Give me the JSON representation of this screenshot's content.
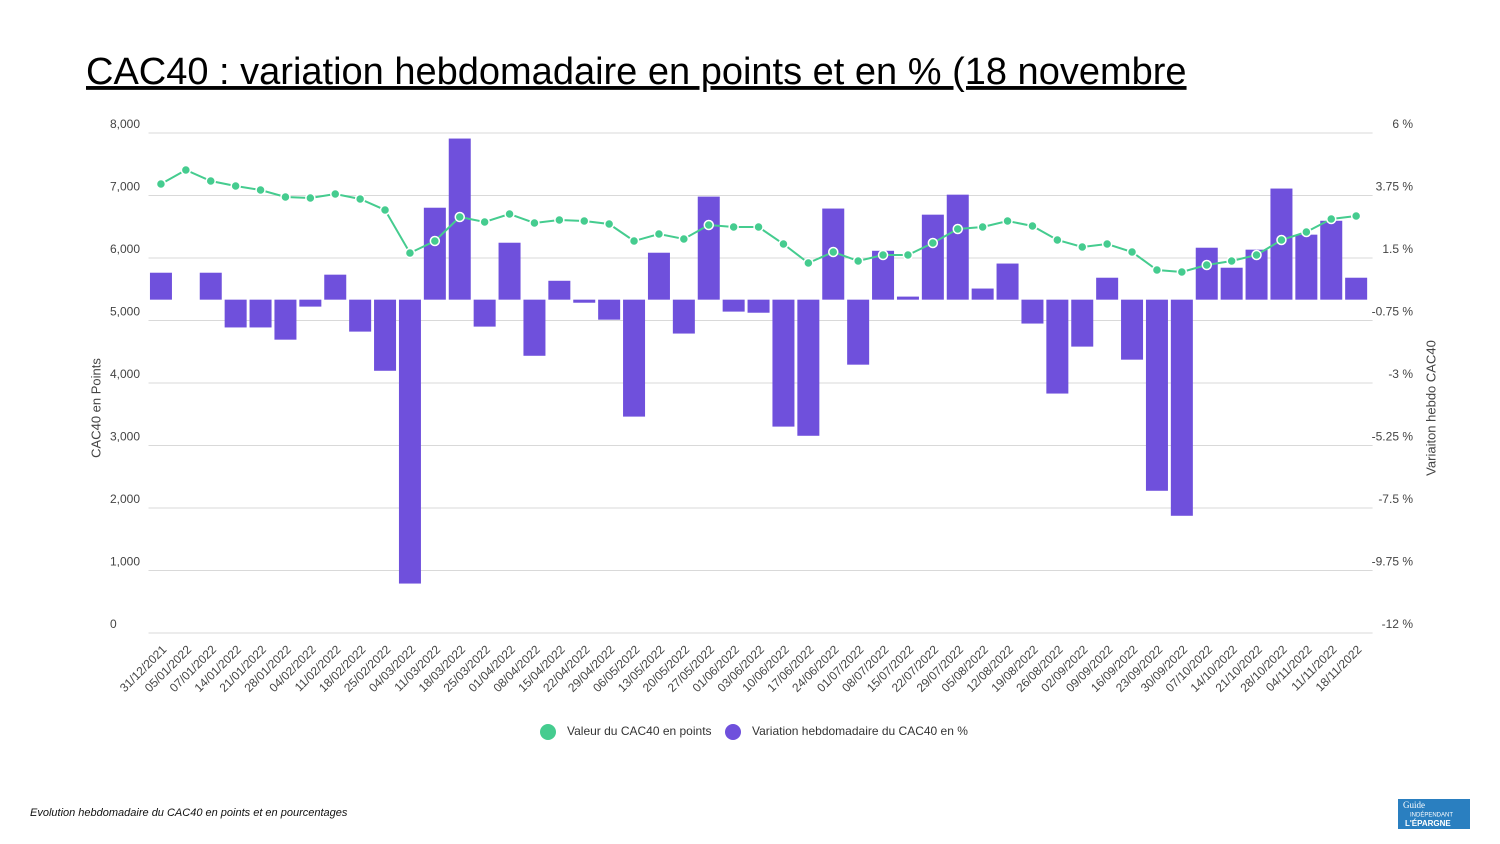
{
  "chart_data": {
    "type": "combo",
    "title": "CAC40 : variation hebdomadaire en points et en % (18 novembre ",
    "ylabel": "CAC40 en Points",
    "y2label": "Variaiton hebdo CAC40",
    "categories": [
      "31/12/2021",
      "05/01/2022",
      "07/01/2022",
      "14/01/2022",
      "21/01/2022",
      "28/01/2022",
      "04/02/2022",
      "11/02/2022",
      "18/02/2022",
      "25/02/2022",
      "04/03/2022",
      "11/03/2022",
      "18/03/2022",
      "25/03/2022",
      "01/04/2022",
      "08/04/2022",
      "15/04/2022",
      "22/04/2022",
      "29/04/2022",
      "06/05/2022",
      "13/05/2022",
      "20/05/2022",
      "27/05/2022",
      "01/06/2022",
      "03/06/2022",
      "10/06/2022",
      "17/06/2022",
      "24/06/2022",
      "01/07/2022",
      "08/07/2022",
      "15/07/2022",
      "22/07/2022",
      "29/07/2022",
      "05/08/2022",
      "12/08/2022",
      "19/08/2022",
      "26/08/2022",
      "02/09/2022",
      "09/09/2022",
      "16/09/2022",
      "23/09/2022",
      "30/09/2022",
      "07/10/2022",
      "14/10/2022",
      "21/10/2022",
      "28/10/2022",
      "04/11/2022",
      "11/11/2022",
      "18/11/2022"
    ],
    "series": [
      {
        "name": "Valeur du CAC40 en points",
        "type": "line",
        "color": "#45cc8f",
        "values": [
          7184,
          7408,
          7232,
          7152,
          7088,
          6976,
          6960,
          7024,
          6944,
          6768,
          6080,
          6272,
          6656,
          6576,
          6704,
          6560,
          6608,
          6592,
          6544,
          6272,
          6384,
          6304,
          6528,
          6496,
          6496,
          6224,
          5920,
          6096,
          5952,
          6048,
          6048,
          6240,
          6464,
          6496,
          6592,
          6512,
          6288,
          6176,
          6224,
          6096,
          5808,
          5776,
          5888,
          5952,
          6048,
          6288,
          6416,
          6624,
          6672
        ]
      },
      {
        "name": "Variation hebdomadaire du CAC40 en %",
        "type": "bar",
        "color": "#6f50dc",
        "axis": "y2",
        "values": [
          0.97,
          null,
          0.97,
          -1.0,
          -1.0,
          -1.44,
          -0.25,
          0.9,
          -1.15,
          -2.56,
          -10.22,
          3.31,
          5.8,
          -0.97,
          2.05,
          -2.02,
          0.68,
          -0.11,
          -0.72,
          -4.21,
          1.69,
          -1.22,
          3.71,
          -0.43,
          -0.47,
          -4.57,
          -4.9,
          3.28,
          -2.34,
          1.76,
          0.11,
          3.06,
          3.78,
          0.4,
          1.3,
          -0.86,
          -3.38,
          -1.69,
          0.79,
          -2.16,
          -6.88,
          -7.78,
          1.87,
          1.15,
          1.8,
          4.0,
          2.34,
          2.84,
          0.79
        ]
      }
    ],
    "ylim": [
      0,
      8000
    ],
    "yticks": [
      0,
      {
        "value": 1000,
        "label": "1,000"
      },
      {
        "value": 2000,
        "label": "2,000"
      },
      {
        "value": 3000,
        "label": "3,000"
      },
      {
        "value": 4000,
        "label": "4,000"
      },
      {
        "value": 5000,
        "label": "5,000"
      },
      {
        "value": 6000,
        "label": "6,000"
      },
      {
        "value": 7000,
        "label": "7,000"
      },
      {
        "value": 8000,
        "label": "8,000"
      }
    ],
    "y2lim": [
      -12,
      6
    ],
    "y2ticks": [
      {
        "value": -12,
        "label": "-12 %"
      },
      {
        "value": -9.75,
        "label": "-9.75 %"
      },
      {
        "value": -7.5,
        "label": "-7.5 %"
      },
      {
        "value": -5.25,
        "label": "-5.25 %"
      },
      {
        "value": -3,
        "label": "-3 %"
      },
      {
        "value": -0.75,
        "label": "-0.75 %"
      },
      {
        "value": 1.5,
        "label": "1.5 %"
      },
      {
        "value": 3.75,
        "label": "3.75 %"
      },
      {
        "value": 6,
        "label": "6 %"
      }
    ],
    "grid": true,
    "legend": "bottom"
  },
  "caption": "Evolution hebdomadaire du CAC40 en points et en pourcentages",
  "logo": [
    "Guide",
    "INDÉPENDANT",
    "L'ÉPARGNE"
  ]
}
